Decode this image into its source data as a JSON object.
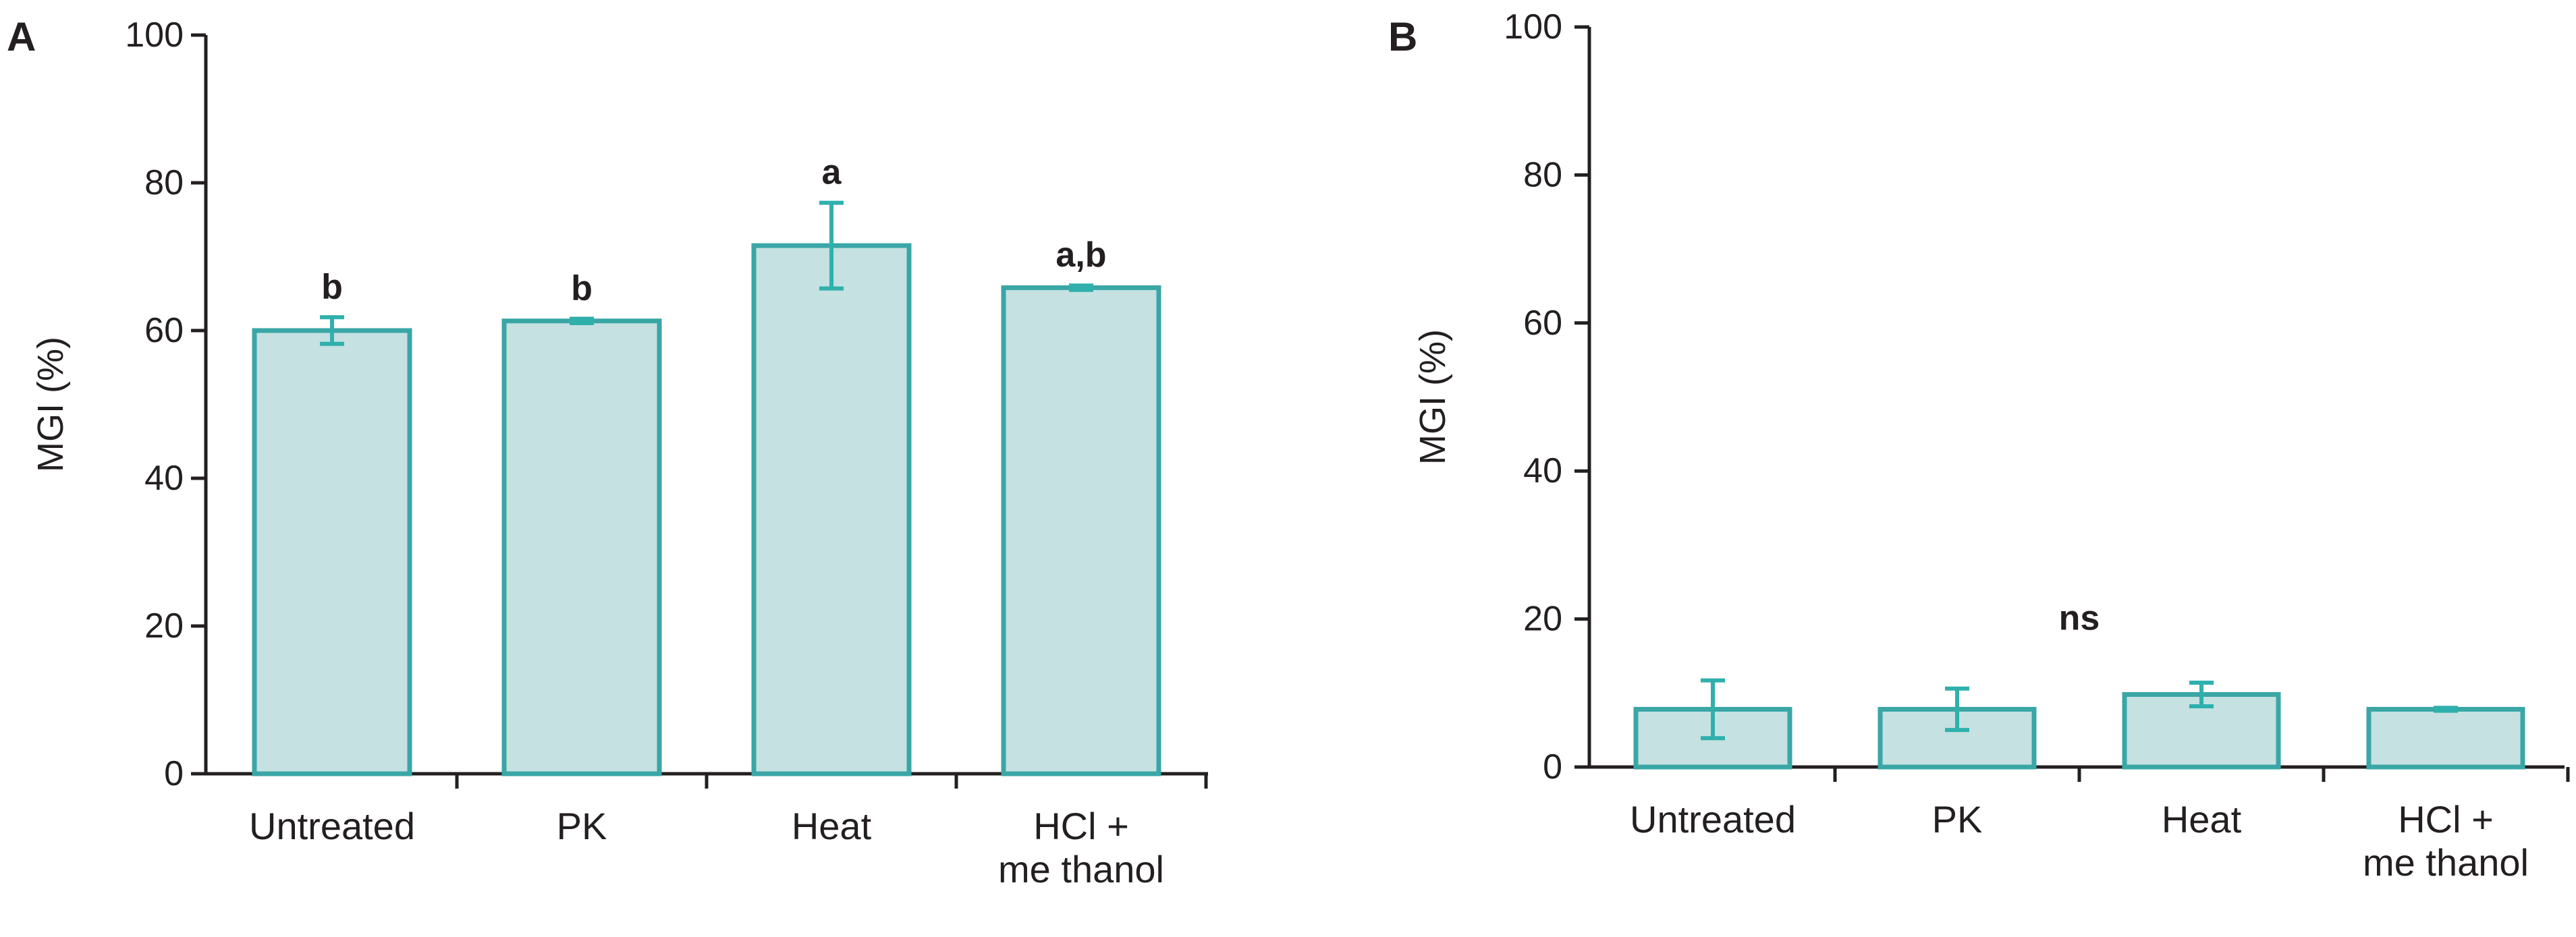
{
  "chart_data": [
    {
      "panel": "A",
      "type": "bar",
      "title": "",
      "xlabel": "",
      "ylabel": "MGI (%)",
      "ylim": [
        0,
        100
      ],
      "yticks": [
        "0",
        "20",
        "40",
        "60",
        "80",
        "100"
      ],
      "categories": [
        [
          "Untreated"
        ],
        [
          "PK"
        ],
        [
          "Heat"
        ],
        [
          "HCl +",
          "me thanol"
        ]
      ],
      "values": [
        60,
        61.3,
        71.5,
        65.8
      ],
      "errors": [
        1.8,
        0.3,
        5.8,
        0.3
      ],
      "significance": [
        "b",
        "b",
        "a",
        "a,b"
      ]
    },
    {
      "panel": "B",
      "type": "bar",
      "title": "",
      "xlabel": "",
      "ylabel": "MGI (%)",
      "ylim": [
        0,
        100
      ],
      "yticks": [
        "0",
        "20",
        "40",
        "60",
        "80",
        "100"
      ],
      "categories": [
        [
          "Untreated"
        ],
        [
          "PK"
        ],
        [
          "Heat"
        ],
        [
          "HCl +",
          "me thanol"
        ]
      ],
      "values": [
        7.8,
        7.8,
        9.8,
        7.8
      ],
      "errors": [
        3.9,
        2.8,
        1.6,
        0.2
      ],
      "significance_label": "ns"
    }
  ],
  "colors": {
    "bar_fill": "#c5e1e1",
    "bar_stroke": "#3aa6a6",
    "error_bar": "#2fb0ac",
    "axis": "#231f20"
  }
}
